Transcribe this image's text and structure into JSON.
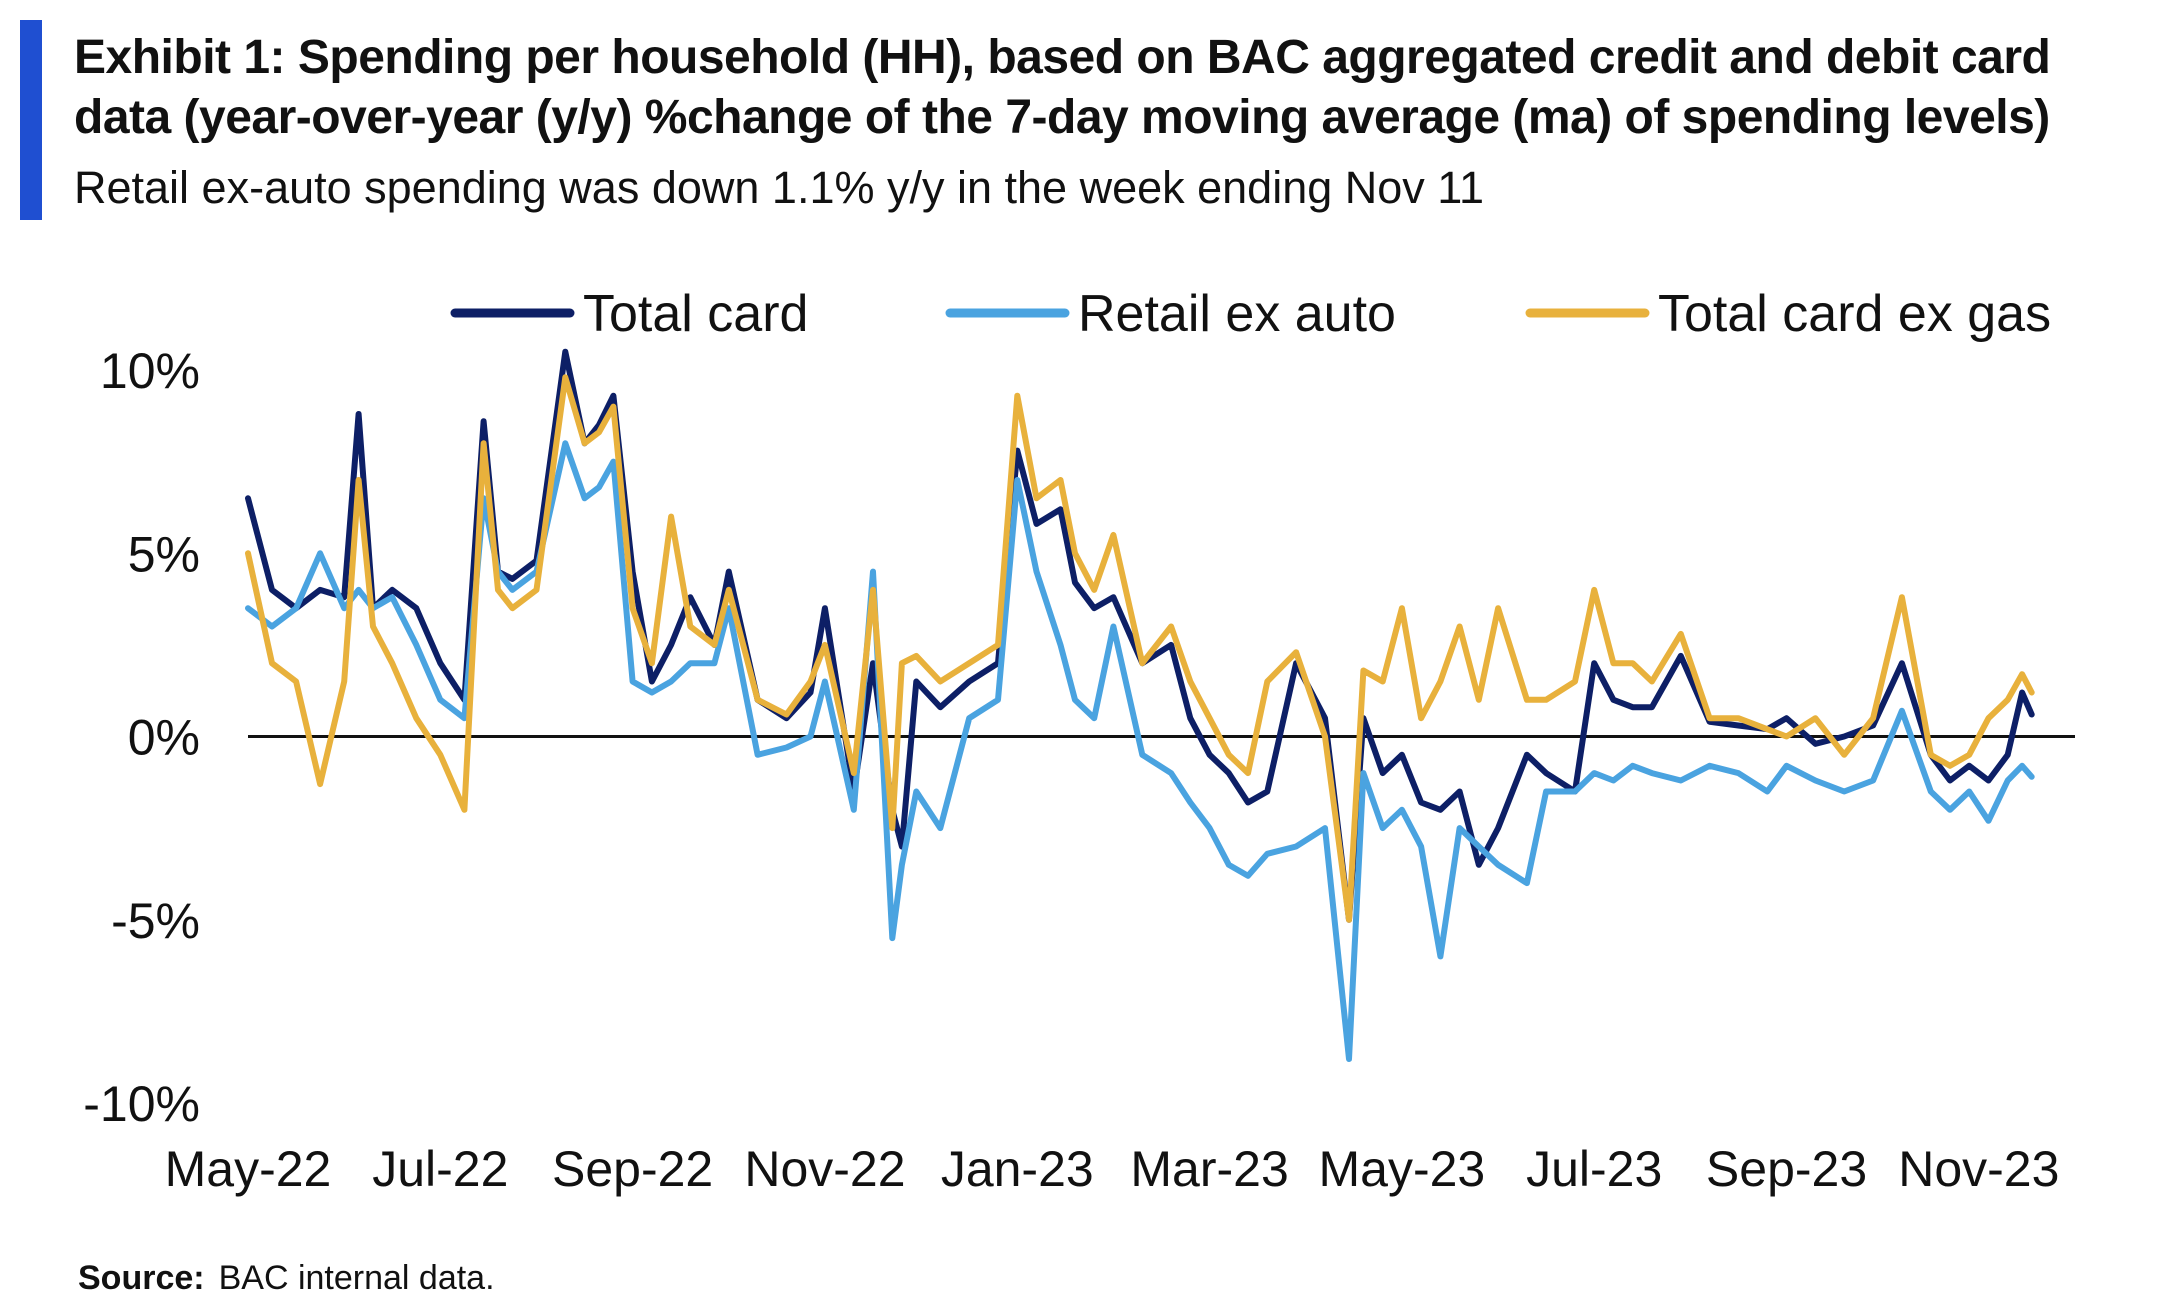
{
  "title": "Exhibit 1: Spending per household (HH), based on BAC aggregated credit and debit card data (year-over-year (y/y) %change of the 7-day moving average (ma) of spending levels)",
  "subtitle": "Retail ex-auto spending was down 1.1% y/y in the week ending Nov 11",
  "source": {
    "label": "Source:",
    "text": "BAC internal data."
  },
  "colors": {
    "accent": "#1f4fd1",
    "total_card": "#0d1f66",
    "retail_ex_auto": "#4aa3e0",
    "total_card_ex_gas": "#e8b13c",
    "zero_line": "#111111"
  },
  "chart_data": {
    "type": "line",
    "title": "Exhibit 1: Spending per household (HH), based on BAC aggregated credit and debit card data (year-over-year (y/y) %change of the 7-day moving average (ma) of spending levels)",
    "xlabel": "",
    "ylabel": "",
    "ylim": [
      -10,
      10
    ],
    "yticks": [
      10,
      5,
      0,
      -5,
      -10
    ],
    "ytick_labels": [
      "10%",
      "5%",
      "0%",
      "-5%",
      "-10%"
    ],
    "xlim": [
      0,
      19
    ],
    "xticks": [
      0,
      2,
      4,
      6,
      8,
      10,
      12,
      14,
      16,
      18
    ],
    "xtick_labels": [
      "May-22",
      "Jul-22",
      "Sep-22",
      "Nov-22",
      "Jan-23",
      "Mar-23",
      "May-23",
      "Jul-23",
      "Sep-23",
      "Nov-23"
    ],
    "legend_position": "top",
    "series": [
      {
        "name": "Total card",
        "color": "#0d1f66",
        "x": [
          0,
          0.25,
          0.5,
          0.75,
          1,
          1.15,
          1.3,
          1.5,
          1.75,
          2,
          2.25,
          2.45,
          2.6,
          2.75,
          3,
          3.3,
          3.5,
          3.65,
          3.8,
          4.0,
          4.2,
          4.4,
          4.6,
          4.85,
          5.0,
          5.3,
          5.6,
          5.85,
          6.0,
          6.3,
          6.5,
          6.7,
          6.8,
          6.95,
          7.2,
          7.5,
          7.8,
          8.0,
          8.2,
          8.45,
          8.6,
          8.8,
          9.0,
          9.3,
          9.6,
          9.8,
          10.0,
          10.2,
          10.4,
          10.6,
          10.9,
          11.2,
          11.45,
          11.6,
          11.8,
          12.0,
          12.2,
          12.4,
          12.6,
          12.8,
          13.0,
          13.3,
          13.5,
          13.8,
          14.0,
          14.2,
          14.4,
          14.6,
          14.9,
          15.2,
          15.5,
          15.8,
          16.0,
          16.3,
          16.6,
          16.9,
          17.2,
          17.5,
          17.7,
          17.9,
          18.1,
          18.3,
          18.45,
          18.55
        ],
        "values": [
          6.5,
          4.0,
          3.5,
          4.0,
          3.8,
          8.8,
          3.5,
          4.0,
          3.5,
          2.0,
          1.0,
          8.6,
          4.5,
          4.3,
          4.8,
          10.5,
          8.0,
          8.5,
          9.3,
          4.5,
          1.5,
          2.5,
          3.8,
          2.5,
          4.5,
          1.0,
          0.5,
          1.2,
          3.5,
          -1.5,
          2.0,
          -2.0,
          -3.0,
          1.5,
          0.8,
          1.5,
          2.0,
          7.8,
          5.8,
          6.2,
          4.2,
          3.5,
          3.8,
          2.0,
          2.5,
          0.5,
          -0.5,
          -1.0,
          -1.8,
          -1.5,
          2.0,
          0.5,
          -5.0,
          0.5,
          -1.0,
          -0.5,
          -1.8,
          -2.0,
          -1.5,
          -3.5,
          -2.5,
          -0.5,
          -1.0,
          -1.5,
          2.0,
          1.0,
          0.8,
          0.8,
          2.2,
          0.4,
          0.3,
          0.2,
          0.5,
          -0.2,
          0.0,
          0.3,
          2.0,
          -0.5,
          -1.2,
          -0.8,
          -1.2,
          -0.5,
          1.2,
          0.6
        ]
      },
      {
        "name": "Retail ex auto",
        "color": "#4aa3e0",
        "x": [
          0,
          0.25,
          0.5,
          0.75,
          1,
          1.15,
          1.3,
          1.5,
          1.75,
          2,
          2.25,
          2.45,
          2.6,
          2.75,
          3,
          3.3,
          3.5,
          3.65,
          3.8,
          4.0,
          4.2,
          4.4,
          4.6,
          4.85,
          5.0,
          5.3,
          5.6,
          5.85,
          6.0,
          6.3,
          6.5,
          6.7,
          6.8,
          6.95,
          7.2,
          7.5,
          7.8,
          8.0,
          8.2,
          8.45,
          8.6,
          8.8,
          9.0,
          9.3,
          9.6,
          9.8,
          10.0,
          10.2,
          10.4,
          10.6,
          10.9,
          11.2,
          11.45,
          11.6,
          11.8,
          12.0,
          12.2,
          12.4,
          12.6,
          12.8,
          13.0,
          13.3,
          13.5,
          13.8,
          14.0,
          14.2,
          14.4,
          14.6,
          14.9,
          15.2,
          15.5,
          15.8,
          16.0,
          16.3,
          16.6,
          16.9,
          17.2,
          17.5,
          17.7,
          17.9,
          18.1,
          18.3,
          18.45,
          18.55
        ],
        "values": [
          3.5,
          3.0,
          3.5,
          5.0,
          3.5,
          4.0,
          3.5,
          3.8,
          2.5,
          1.0,
          0.5,
          6.5,
          4.5,
          4.0,
          4.5,
          8.0,
          6.5,
          6.8,
          7.5,
          1.5,
          1.2,
          1.5,
          2.0,
          2.0,
          3.5,
          -0.5,
          -0.3,
          0.0,
          1.5,
          -2.0,
          4.5,
          -5.5,
          -3.5,
          -1.5,
          -2.5,
          0.5,
          1.0,
          7.0,
          4.5,
          2.5,
          1.0,
          0.5,
          3.0,
          -0.5,
          -1.0,
          -1.8,
          -2.5,
          -3.5,
          -3.8,
          -3.2,
          -3.0,
          -2.5,
          -8.8,
          -1.0,
          -2.5,
          -2.0,
          -3.0,
          -6.0,
          -2.5,
          -3.0,
          -3.5,
          -4.0,
          -1.5,
          -1.5,
          -1.0,
          -1.2,
          -0.8,
          -1.0,
          -1.2,
          -0.8,
          -1.0,
          -1.5,
          -0.8,
          -1.2,
          -1.5,
          -1.2,
          0.7,
          -1.5,
          -2.0,
          -1.5,
          -2.3,
          -1.2,
          -0.8,
          -1.1
        ]
      },
      {
        "name": "Total card ex gas",
        "color": "#e8b13c",
        "x": [
          0,
          0.25,
          0.5,
          0.75,
          1,
          1.15,
          1.3,
          1.5,
          1.75,
          2,
          2.25,
          2.45,
          2.6,
          2.75,
          3,
          3.3,
          3.5,
          3.65,
          3.8,
          4.0,
          4.2,
          4.4,
          4.6,
          4.85,
          5.0,
          5.3,
          5.6,
          5.85,
          6.0,
          6.3,
          6.5,
          6.7,
          6.8,
          6.95,
          7.2,
          7.5,
          7.8,
          8.0,
          8.2,
          8.45,
          8.6,
          8.8,
          9.0,
          9.3,
          9.6,
          9.8,
          10.0,
          10.2,
          10.4,
          10.6,
          10.9,
          11.2,
          11.45,
          11.6,
          11.8,
          12.0,
          12.2,
          12.4,
          12.6,
          12.8,
          13.0,
          13.3,
          13.5,
          13.8,
          14.0,
          14.2,
          14.4,
          14.6,
          14.9,
          15.2,
          15.5,
          15.8,
          16.0,
          16.3,
          16.6,
          16.9,
          17.2,
          17.5,
          17.7,
          17.9,
          18.1,
          18.3,
          18.45,
          18.55
        ],
        "values": [
          5.0,
          2.0,
          1.5,
          -1.3,
          1.5,
          7.0,
          3.0,
          2.0,
          0.5,
          -0.5,
          -2.0,
          8.0,
          4.0,
          3.5,
          4.0,
          9.8,
          8.0,
          8.3,
          9.0,
          3.5,
          2.0,
          6.0,
          3.0,
          2.5,
          4.0,
          1.0,
          0.6,
          1.5,
          2.5,
          -1.0,
          4.0,
          -2.5,
          2.0,
          2.2,
          1.5,
          2.0,
          2.5,
          9.3,
          6.5,
          7.0,
          5.0,
          4.0,
          5.5,
          2.0,
          3.0,
          1.5,
          0.5,
          -0.5,
          -1.0,
          1.5,
          2.3,
          0.0,
          -5.0,
          1.8,
          1.5,
          3.5,
          0.5,
          1.5,
          3.0,
          1.0,
          3.5,
          1.0,
          1.0,
          1.5,
          4.0,
          2.0,
          2.0,
          1.5,
          2.8,
          0.5,
          0.5,
          0.2,
          0.0,
          0.5,
          -0.5,
          0.5,
          3.8,
          -0.5,
          -0.8,
          -0.5,
          0.5,
          1.0,
          1.7,
          1.2
        ]
      }
    ]
  }
}
